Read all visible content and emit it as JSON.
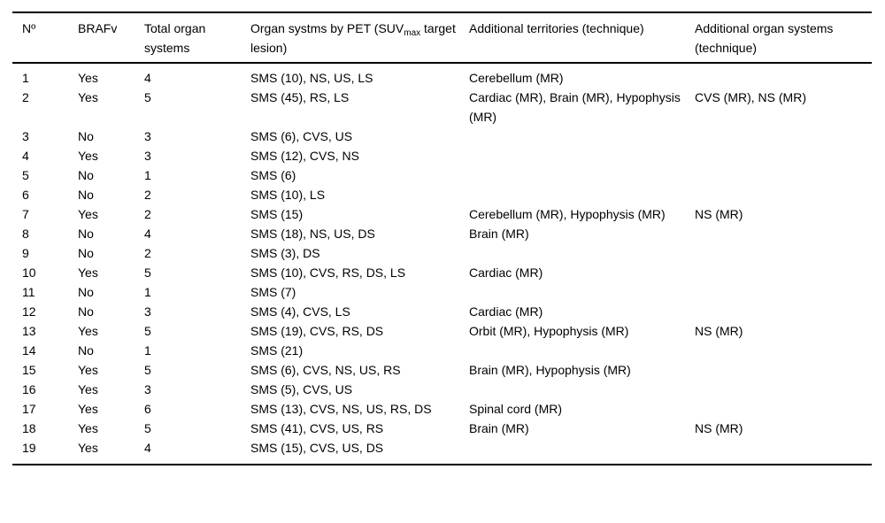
{
  "table": {
    "columns": [
      {
        "key": "no",
        "label": "Nº"
      },
      {
        "key": "brafv",
        "label": "BRAFv"
      },
      {
        "key": "total-organ-systems",
        "label": "Total organ systems"
      },
      {
        "key": "organ-systems-pet",
        "label_pre": "Organ systms by PET (SUV",
        "label_sub": "max",
        "label_post": " target lesion)"
      },
      {
        "key": "additional-territories",
        "label": "Additional territories (technique)"
      },
      {
        "key": "additional-organ-systems",
        "label": "Additional organ systems (technique)"
      }
    ],
    "rows": [
      {
        "cells": [
          "1",
          "Yes",
          "4",
          "SMS (10), NS, US, LS",
          "Cerebellum (MR)",
          ""
        ]
      },
      {
        "cells": [
          "2",
          "Yes",
          "5",
          "SMS (45), RS, LS",
          "Cardiac (MR), Brain (MR), Hypophysis (MR)",
          "CVS (MR), NS (MR)"
        ]
      },
      {
        "cells": [
          "3",
          "No",
          "3",
          "SMS (6), CVS, US",
          "",
          ""
        ]
      },
      {
        "cells": [
          "4",
          "Yes",
          "3",
          "SMS (12), CVS, NS",
          "",
          ""
        ]
      },
      {
        "cells": [
          "5",
          "No",
          "1",
          "SMS (6)",
          "",
          ""
        ]
      },
      {
        "cells": [
          "6",
          "No",
          "2",
          "SMS (10), LS",
          "",
          ""
        ]
      },
      {
        "cells": [
          "7",
          "Yes",
          "2",
          "SMS (15)",
          "Cerebellum (MR), Hypophysis (MR)",
          "NS (MR)"
        ]
      },
      {
        "cells": [
          "8",
          "No",
          "4",
          "SMS (18), NS, US, DS",
          "Brain (MR)",
          ""
        ]
      },
      {
        "cells": [
          "9",
          "No",
          "2",
          "SMS (3), DS",
          "",
          ""
        ]
      },
      {
        "cells": [
          "10",
          "Yes",
          "5",
          "SMS (10), CVS, RS, DS, LS",
          "Cardiac (MR)",
          ""
        ]
      },
      {
        "cells": [
          "11",
          "No",
          "1",
          "SMS (7)",
          "",
          ""
        ]
      },
      {
        "cells": [
          "12",
          "No",
          "3",
          "SMS (4), CVS, LS",
          "Cardiac (MR)",
          ""
        ]
      },
      {
        "cells": [
          "13",
          "Yes",
          "5",
          "SMS (19), CVS, RS, DS",
          "Orbit (MR), Hypophysis (MR)",
          "NS (MR)"
        ]
      },
      {
        "cells": [
          "14",
          "No",
          "1",
          "SMS (21)",
          "",
          ""
        ]
      },
      {
        "cells": [
          "15",
          "Yes",
          "5",
          "SMS (6), CVS, NS, US, RS",
          "Brain (MR), Hypophysis (MR)",
          ""
        ]
      },
      {
        "cells": [
          "16",
          "Yes",
          "3",
          "SMS (5), CVS, US",
          "",
          ""
        ]
      },
      {
        "cells": [
          "17",
          "Yes",
          "6",
          "SMS (13), CVS, NS, US, RS, DS",
          "Spinal cord (MR)",
          ""
        ]
      },
      {
        "cells": [
          "18",
          "Yes",
          "5",
          "SMS (41), CVS, US, RS",
          "Brain (MR)",
          "NS (MR)"
        ]
      },
      {
        "cells": [
          "19",
          "Yes",
          "4",
          "SMS (15), CVS, US, DS",
          "",
          ""
        ]
      }
    ]
  }
}
